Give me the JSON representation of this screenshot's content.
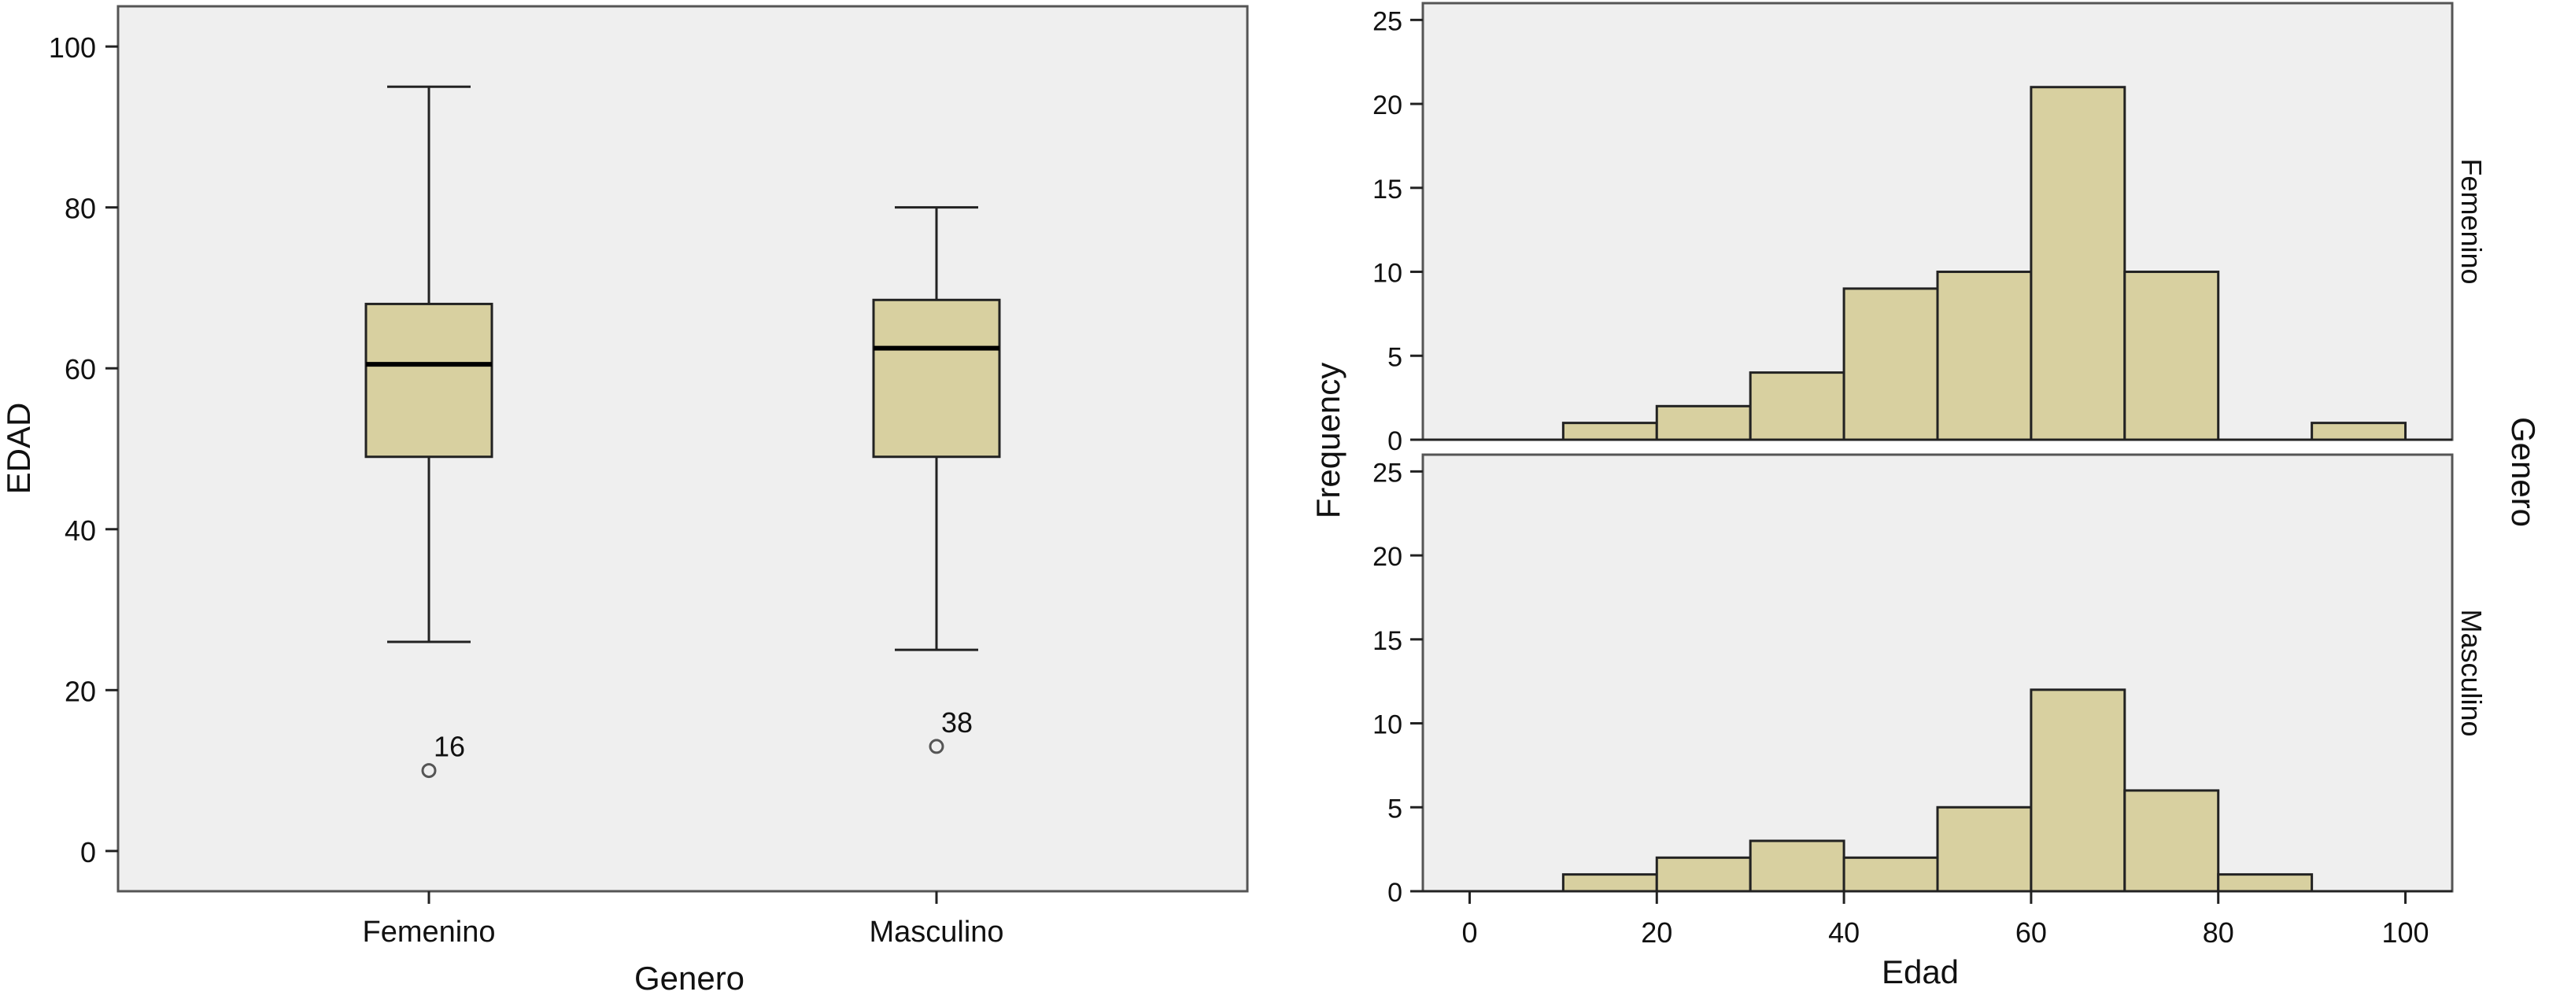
{
  "chart_data": [
    {
      "type": "box",
      "xlabel": "Genero",
      "ylabel": "EDAD",
      "ylim": [
        -5,
        105
      ],
      "yticks": [
        0,
        20,
        40,
        60,
        80,
        100
      ],
      "categories": [
        "Femenino",
        "Masculino"
      ],
      "boxes": [
        {
          "category": "Femenino",
          "whisker_low": 26,
          "q1": 49,
          "median": 60.5,
          "q3": 68,
          "whisker_high": 95,
          "outliers": [
            {
              "value": 10,
              "label": "16"
            }
          ]
        },
        {
          "category": "Masculino",
          "whisker_low": 25,
          "q1": 49,
          "median": 62.5,
          "q3": 68.5,
          "whisker_high": 80,
          "outliers": [
            {
              "value": 13,
              "label": "38"
            }
          ]
        }
      ],
      "colors": {
        "box": "#d8d0a0",
        "background": "#efefef"
      },
      "grid": false
    },
    {
      "type": "bar",
      "subtype": "histogram",
      "xlabel": "Edad",
      "ylabel": "Frequency",
      "facet_label": "Genero",
      "xlim": [
        -5,
        105
      ],
      "xticks": [
        0,
        20,
        40,
        60,
        80,
        100
      ],
      "ylim": [
        0,
        26
      ],
      "yticks": [
        0,
        5,
        10,
        15,
        20,
        25
      ],
      "bin_width": 10,
      "panels": [
        {
          "name": "Femenino",
          "bins": [
            10,
            20,
            30,
            40,
            50,
            60,
            70,
            90
          ],
          "values": [
            1,
            2,
            4,
            9,
            10,
            21,
            10,
            1
          ]
        },
        {
          "name": "Masculino",
          "bins": [
            10,
            20,
            30,
            40,
            50,
            60,
            70,
            80
          ],
          "values": [
            1,
            2,
            3,
            2,
            5,
            12,
            6,
            1
          ]
        }
      ],
      "colors": {
        "bar": "#d8d0a0",
        "background": "#efefef"
      },
      "grid": false
    }
  ]
}
